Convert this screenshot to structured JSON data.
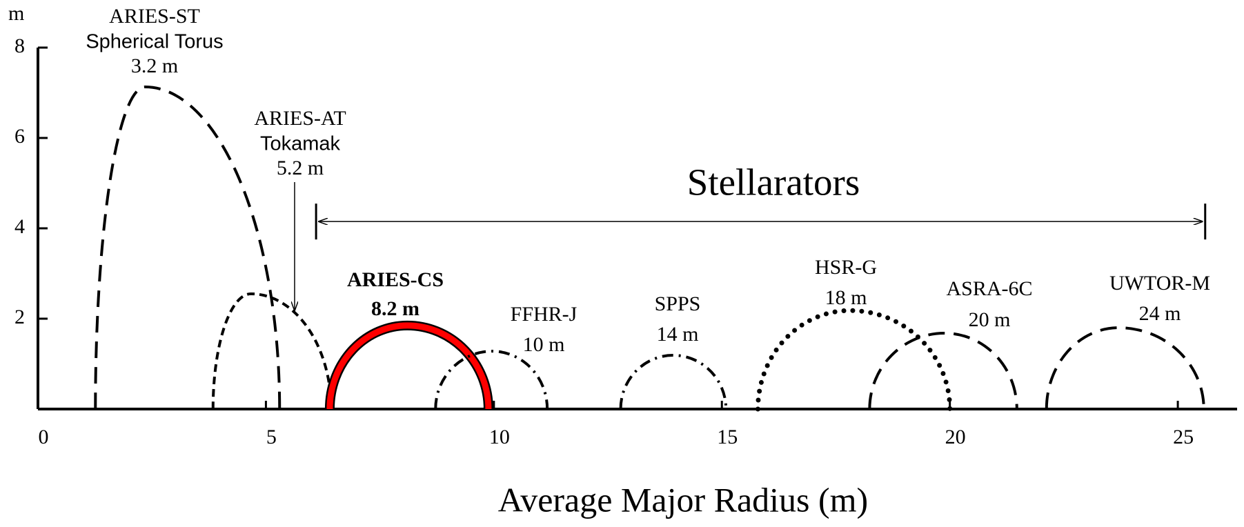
{
  "chart_data": {
    "type": "cross-section",
    "ylabel": "m",
    "xlabel": "Average Major Radius (m)",
    "xlim": [
      0,
      26.3
    ],
    "ylim": [
      0,
      8
    ],
    "xticks": [
      0,
      5,
      10,
      15,
      20,
      25
    ],
    "yticks": [
      2,
      4,
      6,
      8
    ],
    "annotation": {
      "text": "Stellarators",
      "color": "#ff0000",
      "from": 6.1,
      "to": 25.6,
      "y": 4.15
    },
    "series": [
      {
        "name": "ARIES-ST",
        "subtitle": "Spherical Torus",
        "subtitle_color": "#1a6fe8",
        "label": "3.2 m",
        "color": "#000000",
        "label_color": "#000000",
        "bold": false,
        "style": "longdash",
        "inner": 1.26,
        "peak_x": 2.35,
        "outer": 5.3,
        "height": 7.13
      },
      {
        "name": "ARIES-AT",
        "subtitle": "Tokamak",
        "subtitle_color": "#1a6fe8",
        "label": "5.2 m",
        "color": "#000000",
        "label_color": "#000000",
        "bold": false,
        "style": "shortdash",
        "inner": 3.84,
        "peak_x": 4.67,
        "outer": 6.43,
        "height": 2.55
      },
      {
        "name": "ARIES-CS",
        "label": "8.2 m",
        "color": "#ff0000",
        "label_color": "#ff0000",
        "bold": true,
        "style": "solid",
        "inner": 6.4,
        "peak_x": 8.1,
        "outer": 9.88,
        "height": 1.85
      },
      {
        "name": "FFHR-J",
        "label": "10 m",
        "color": "#000000",
        "label_color": "#000000",
        "bold": false,
        "style": "dashdot",
        "inner": 8.72,
        "peak_x": 9.96,
        "outer": 11.17,
        "height": 1.28
      },
      {
        "name": "SPPS",
        "label": "14 m",
        "color": "#000000",
        "label_color": "#ff0000",
        "bold": false,
        "style": "dashdot",
        "inner": 12.78,
        "peak_x": 13.93,
        "outer": 15.09,
        "height": 1.19
      },
      {
        "name": "HSR-G",
        "label": "18 m",
        "color": "#000000",
        "label_color": "#000000",
        "bold": false,
        "style": "dotted",
        "inner": 15.79,
        "peak_x": 17.81,
        "outer": 20.0,
        "height": 2.18
      },
      {
        "name": "ASRA-6C",
        "label": "20 m",
        "color": "#000000",
        "label_color": "#000000",
        "bold": false,
        "style": "longdash",
        "inner": 18.24,
        "peak_x": 19.88,
        "outer": 21.47,
        "height": 1.68
      },
      {
        "name": "UWTOR-M",
        "label": "24 m",
        "color": "#000000",
        "label_color": "#000000",
        "bold": false,
        "style": "longdash",
        "inner": 22.12,
        "peak_x": 23.7,
        "outer": 25.57,
        "height": 1.8
      }
    ]
  }
}
